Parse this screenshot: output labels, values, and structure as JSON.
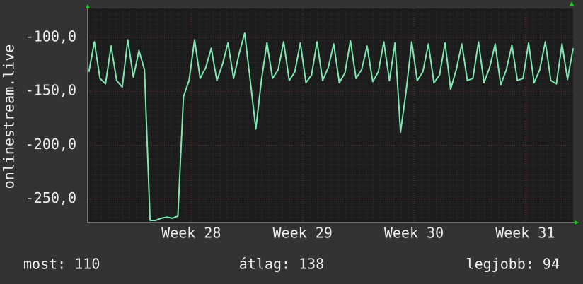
{
  "chart_data": {
    "type": "line",
    "y_label": "onlinestream.live",
    "ylim": [
      -272,
      -73
    ],
    "yticks": [
      {
        "value": -100,
        "label": "-100,0"
      },
      {
        "value": -150,
        "label": "-150,0"
      },
      {
        "value": -200,
        "label": "-200,0"
      },
      {
        "value": -250,
        "label": "-250,0"
      }
    ],
    "xlim": [
      27.07,
      31.43
    ],
    "xticks": [
      {
        "value": 28,
        "label": "Week 28"
      },
      {
        "value": 29,
        "label": "Week 29"
      },
      {
        "value": 30,
        "label": "Week 30"
      },
      {
        "value": 31,
        "label": "Week 31"
      }
    ],
    "grid": true,
    "x": [
      27.08,
      27.13,
      27.18,
      27.23,
      27.28,
      27.33,
      27.38,
      27.43,
      27.48,
      27.53,
      27.58,
      27.63,
      27.68,
      27.73,
      27.78,
      27.83,
      27.88,
      27.93,
      27.98,
      28.03,
      28.08,
      28.13,
      28.18,
      28.23,
      28.28,
      28.33,
      28.38,
      28.43,
      28.48,
      28.53,
      28.58,
      28.63,
      28.68,
      28.73,
      28.78,
      28.83,
      28.88,
      28.93,
      28.98,
      29.03,
      29.08,
      29.13,
      29.18,
      29.23,
      29.28,
      29.33,
      29.38,
      29.43,
      29.48,
      29.53,
      29.58,
      29.63,
      29.68,
      29.73,
      29.78,
      29.83,
      29.88,
      29.93,
      29.98,
      30.03,
      30.08,
      30.13,
      30.18,
      30.23,
      30.28,
      30.33,
      30.38,
      30.43,
      30.48,
      30.53,
      30.58,
      30.63,
      30.68,
      30.73,
      30.78,
      30.83,
      30.88,
      30.93,
      30.98,
      31.03,
      31.08,
      31.13,
      31.18,
      31.23,
      31.28,
      31.33,
      31.38,
      31.43
    ],
    "series": [
      {
        "color": "#7fe8b0",
        "values": [
          -132,
          -104,
          -138,
          -143,
          -108,
          -140,
          -146,
          -102,
          -137,
          -112,
          -130,
          -270,
          -270,
          -268,
          -267,
          -268,
          -266,
          -155,
          -140,
          -102,
          -138,
          -128,
          -110,
          -140,
          -125,
          -105,
          -138,
          -115,
          -96,
          -140,
          -185,
          -140,
          -105,
          -138,
          -130,
          -104,
          -140,
          -132,
          -105,
          -142,
          -135,
          -104,
          -140,
          -128,
          -106,
          -142,
          -133,
          -103,
          -138,
          -130,
          -108,
          -141,
          -132,
          -104,
          -140,
          -105,
          -188,
          -150,
          -104,
          -140,
          -132,
          -106,
          -142,
          -135,
          -105,
          -148,
          -130,
          -106,
          -140,
          -138,
          -104,
          -142,
          -128,
          -106,
          -144,
          -130,
          -107,
          -140,
          -138,
          -105,
          -142,
          -130,
          -104,
          -140,
          -143,
          -106,
          -139,
          -110
        ]
      }
    ],
    "footer": [
      "most: 110",
      "átlag: 138",
      "legjobb: 94"
    ]
  }
}
